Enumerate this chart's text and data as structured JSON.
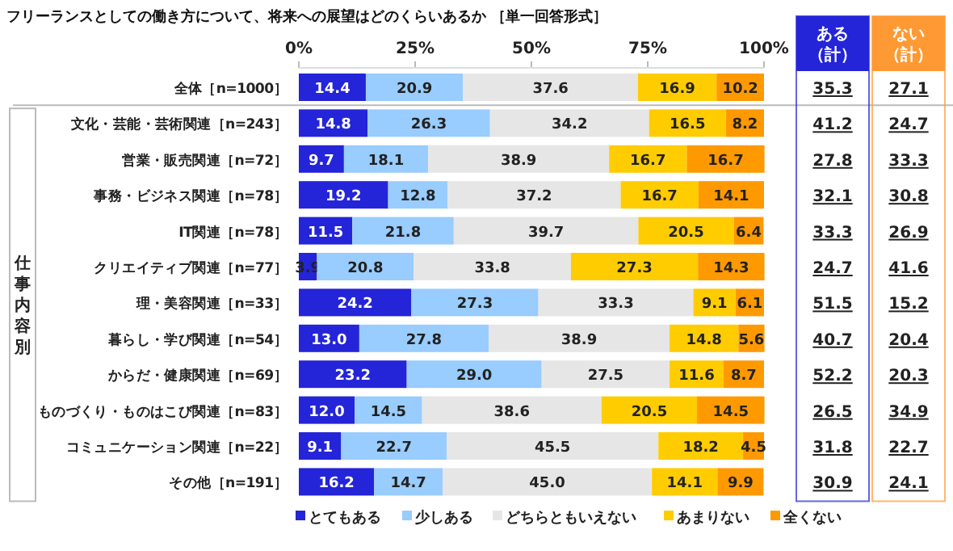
{
  "chart_data": [
    {
      "type": "bar",
      "orientation": "horizontal",
      "stacked": true,
      "title": "フリーランスとしての働き方について、将来への展望はどのくらいあるか ［単一回答形式］",
      "categories": [
        "全体［n=1000］",
        "文化・芸能・芸術関連［n=243］",
        "営業・販売関連［n=72］",
        "事務・ビジネス関連［n=78］",
        "IT関連［n=78］",
        "クリエイティブ関連［n=77］",
        "理・美容関連［n=33］",
        "暮らし・学び関連［n=54］",
        "からだ・健康関連［n=69］",
        "ものづくり・ものはこび関連［n=83］",
        "コミュニケーション関連［n=22］",
        "その他［n=191］"
      ],
      "series": [
        {
          "name": "とてもある",
          "color": "#2424d8",
          "values": [
            14.4,
            14.8,
            9.7,
            19.2,
            11.5,
            3.9,
            24.2,
            13.0,
            23.2,
            12.0,
            9.1,
            16.2
          ],
          "value_labels": [
            "14.4",
            "14.8",
            "9.7",
            "19.2",
            "11.5",
            "3.9",
            "24.2",
            "13.0",
            "23.2",
            "12.0",
            "9.1",
            "16.2"
          ]
        },
        {
          "name": "少しある",
          "color": "#99ccff",
          "values": [
            20.9,
            26.3,
            18.1,
            12.8,
            21.8,
            20.8,
            27.3,
            27.8,
            29.0,
            14.5,
            22.7,
            14.7
          ],
          "value_labels": [
            "20.9",
            "26.3",
            "18.1",
            "12.8",
            "21.8",
            "20.8",
            "27.3",
            "27.8",
            "29.0",
            "14.5",
            "22.7",
            "14.7"
          ]
        },
        {
          "name": "どちらともいえない",
          "color": "#e6e6e6",
          "values": [
            37.6,
            34.2,
            38.9,
            37.2,
            39.7,
            33.8,
            33.3,
            38.9,
            27.5,
            38.6,
            45.5,
            45.0
          ],
          "value_labels": [
            "37.6",
            "34.2",
            "38.9",
            "37.2",
            "39.7",
            "33.8",
            "33.3",
            "38.9",
            "27.5",
            "38.6",
            "45.5",
            "45.0"
          ]
        },
        {
          "name": "あまりない",
          "color": "#ffcc00",
          "values": [
            16.9,
            16.5,
            16.7,
            16.7,
            20.5,
            27.3,
            9.1,
            14.8,
            11.6,
            20.5,
            18.2,
            14.1
          ],
          "value_labels": [
            "16.9",
            "16.5",
            "16.7",
            "16.7",
            "20.5",
            "27.3",
            "9.1",
            "14.8",
            "11.6",
            "20.5",
            "18.2",
            "14.1"
          ]
        },
        {
          "name": "全くない",
          "color": "#ff9900",
          "values": [
            10.2,
            8.2,
            16.7,
            14.1,
            6.4,
            14.3,
            6.1,
            5.6,
            8.7,
            14.5,
            4.5,
            9.9
          ],
          "value_labels": [
            "10.2",
            "8.2",
            "16.7",
            "14.1",
            "6.4",
            "14.3",
            "6.1",
            "5.6",
            "8.7",
            "14.5",
            "4.5",
            "9.9"
          ]
        }
      ],
      "xlim": [
        0,
        100
      ],
      "xticks": [
        {
          "value": 0,
          "label": "0%"
        },
        {
          "value": 25,
          "label": "25%"
        },
        {
          "value": 50,
          "label": "50%"
        },
        {
          "value": 75,
          "label": "75%"
        },
        {
          "value": 100,
          "label": "100%"
        }
      ],
      "legend": "bottom",
      "grid": false,
      "annotations": [
        "仕事内容別"
      ]
    },
    {
      "type": "heatmap",
      "categories": [
        "ある（計）",
        "ない（計）"
      ],
      "colors": [
        "#2424d8",
        "#ff9933"
      ],
      "y_categories": [
        null,
        null,
        null,
        null,
        null,
        null,
        null,
        null,
        null,
        null,
        null,
        null
      ],
      "cells": [
        [
          35.3,
          27.1
        ],
        [
          41.2,
          24.7
        ],
        [
          27.8,
          33.3
        ],
        [
          32.1,
          30.8
        ],
        [
          33.3,
          26.9
        ],
        [
          24.7,
          41.6
        ],
        [
          51.5,
          15.2
        ],
        [
          40.7,
          20.4
        ],
        [
          52.2,
          20.3
        ],
        [
          26.5,
          34.9
        ],
        [
          31.8,
          22.7
        ],
        [
          30.9,
          24.1
        ]
      ],
      "data_labels": true
    }
  ]
}
